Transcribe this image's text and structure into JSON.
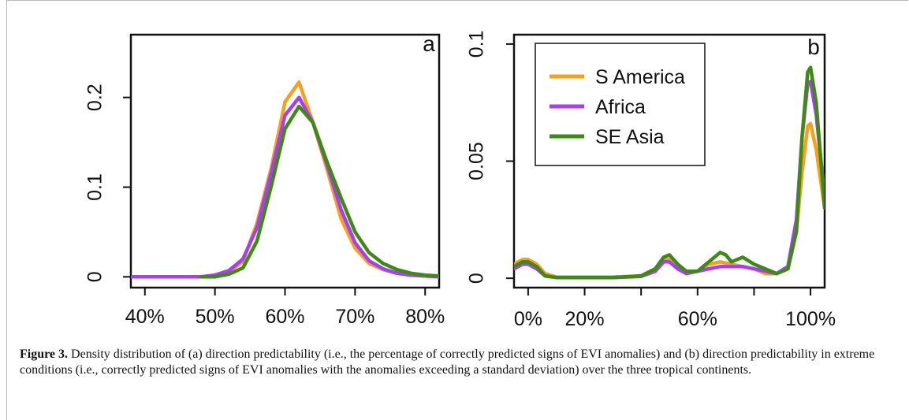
{
  "caption": {
    "label": "Figure 3.",
    "text": " Density distribution of (a) direction predictability (i.e., the percentage of correctly predicted signs of EVI anomalies) and (b) direction predictability in extreme conditions (i.e., correctly predicted signs of EVI anomalies with the anomalies exceeding a standard deviation) over the three tropical continents."
  },
  "colors": {
    "S America": "#f5a020",
    "Africa": "#a640ef",
    "SE Asia": "#3f8a17"
  },
  "chart_data": [
    {
      "type": "line",
      "panel_label": "a",
      "xlim": [
        38,
        82
      ],
      "ylim": [
        -0.012,
        0.27
      ],
      "x_ticks": [
        40,
        50,
        60,
        70,
        80
      ],
      "x_tick_labels": [
        "40%",
        "50%",
        "60%",
        "70%",
        "80%"
      ],
      "y_ticks": [
        0,
        0.1,
        0.2
      ],
      "y_tick_labels": [
        "0",
        "0.1",
        "0.2"
      ],
      "grid": false,
      "series": [
        {
          "name": "S America",
          "x": [
            38,
            48,
            50,
            52,
            54,
            56,
            58,
            60,
            62,
            64,
            66,
            68,
            70,
            72,
            74,
            76,
            78,
            80,
            82
          ],
          "y": [
            0,
            0,
            0.002,
            0.006,
            0.017,
            0.06,
            0.12,
            0.195,
            0.217,
            0.172,
            0.12,
            0.065,
            0.032,
            0.015,
            0.008,
            0.004,
            0.002,
            0.001,
            0
          ]
        },
        {
          "name": "Africa",
          "x": [
            38,
            48,
            50,
            52,
            54,
            56,
            58,
            60,
            62,
            64,
            66,
            68,
            70,
            72,
            74,
            76,
            78,
            80,
            82
          ],
          "y": [
            0,
            0,
            0.002,
            0.007,
            0.02,
            0.055,
            0.115,
            0.18,
            0.2,
            0.172,
            0.125,
            0.075,
            0.038,
            0.018,
            0.009,
            0.004,
            0.002,
            0.001,
            0
          ]
        },
        {
          "name": "SE Asia",
          "x": [
            48,
            50,
            52,
            54,
            56,
            58,
            60,
            62,
            64,
            66,
            68,
            70,
            72,
            74,
            76,
            78,
            80,
            82
          ],
          "y": [
            0,
            0,
            0.003,
            0.01,
            0.04,
            0.1,
            0.165,
            0.19,
            0.172,
            0.128,
            0.088,
            0.05,
            0.027,
            0.015,
            0.008,
            0.004,
            0.002,
            0.001
          ]
        }
      ]
    },
    {
      "type": "line",
      "panel_label": "b",
      "xlim": [
        -5,
        105
      ],
      "ylim": [
        -0.004,
        0.104
      ],
      "x_ticks": [
        0,
        20,
        40,
        60,
        80,
        100
      ],
      "x_tick_labels": [
        "0%",
        "20%",
        "",
        "60%",
        "",
        "100%"
      ],
      "y_ticks": [
        0,
        0.05,
        0.1
      ],
      "y_tick_labels": [
        "0",
        "0.05",
        "0.1"
      ],
      "legend": {
        "position": "top-left",
        "entries": [
          "S America",
          "Africa",
          "SE Asia"
        ]
      },
      "grid": false,
      "series": [
        {
          "name": "S America",
          "x": [
            -5,
            -2,
            0,
            3,
            6,
            10,
            20,
            30,
            40,
            45,
            48,
            50,
            53,
            56,
            60,
            64,
            68,
            72,
            76,
            80,
            84,
            88,
            92,
            95,
            97,
            99,
            100,
            102,
            105
          ],
          "y": [
            0.006,
            0.008,
            0.008,
            0.006,
            0.002,
            0.0005,
            0.0005,
            0.0005,
            0.001,
            0.004,
            0.008,
            0.008,
            0.005,
            0.003,
            0.003,
            0.006,
            0.007,
            0.006,
            0.005,
            0.004,
            0.002,
            0.002,
            0.004,
            0.02,
            0.045,
            0.065,
            0.066,
            0.055,
            0.03
          ]
        },
        {
          "name": "Africa",
          "x": [
            -5,
            -2,
            0,
            3,
            6,
            10,
            20,
            30,
            40,
            45,
            48,
            50,
            53,
            56,
            60,
            64,
            68,
            72,
            76,
            80,
            84,
            88,
            92,
            95,
            97,
            99,
            100,
            102,
            105
          ],
          "y": [
            0.004,
            0.006,
            0.006,
            0.004,
            0.001,
            0.0003,
            0.0003,
            0.0003,
            0.0008,
            0.003,
            0.007,
            0.007,
            0.004,
            0.002,
            0.003,
            0.004,
            0.005,
            0.005,
            0.005,
            0.004,
            0.003,
            0.002,
            0.005,
            0.025,
            0.06,
            0.083,
            0.084,
            0.07,
            0.035
          ]
        },
        {
          "name": "SE Asia",
          "x": [
            -5,
            -2,
            0,
            3,
            6,
            10,
            20,
            30,
            40,
            45,
            48,
            50,
            53,
            56,
            60,
            64,
            68,
            70,
            72,
            74,
            76,
            80,
            84,
            88,
            92,
            95,
            97,
            99,
            100,
            102,
            105
          ],
          "y": [
            0.005,
            0.007,
            0.007,
            0.005,
            0.001,
            0.0003,
            0.0003,
            0.0003,
            0.001,
            0.004,
            0.009,
            0.01,
            0.006,
            0.003,
            0.003,
            0.007,
            0.011,
            0.01,
            0.007,
            0.008,
            0.009,
            0.006,
            0.004,
            0.002,
            0.004,
            0.02,
            0.06,
            0.088,
            0.09,
            0.075,
            0.03
          ]
        }
      ]
    }
  ]
}
